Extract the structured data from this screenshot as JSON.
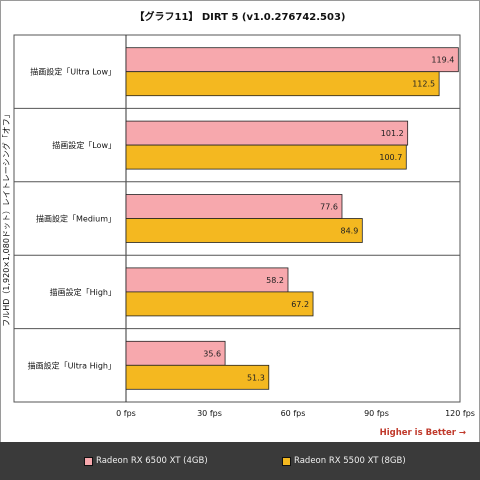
{
  "title": "【グラフ11】 DIRT 5 (v1.0.276742.503)",
  "higher_is_better": "Higher is Better →",
  "chart_data": {
    "type": "bar",
    "orientation": "horizontal",
    "categories": [
      "描画設定「Ultra Low」",
      "描画設定「Low」",
      "描画設定「Medium」",
      "描画設定「High」",
      "描画設定「Ultra High」"
    ],
    "series": [
      {
        "name": "Radeon RX 6500 XT (4GB)",
        "color": "#f7a8ad",
        "values": [
          119.4,
          101.2,
          77.6,
          58.2,
          35.6
        ]
      },
      {
        "name": "Radeon RX 5500 XT (8GB)",
        "color": "#f4b820",
        "values": [
          112.5,
          100.7,
          84.9,
          67.2,
          51.3
        ]
      }
    ],
    "xticks": [
      "0 fps",
      "30 fps",
      "60 fps",
      "90 fps",
      "120 fps"
    ],
    "xlim": [
      0,
      120
    ],
    "ylabel": "フルHD（1,920×1,080ドット）レイトレーシング「オフ」",
    "legend_position": "bottom",
    "grid": false
  }
}
